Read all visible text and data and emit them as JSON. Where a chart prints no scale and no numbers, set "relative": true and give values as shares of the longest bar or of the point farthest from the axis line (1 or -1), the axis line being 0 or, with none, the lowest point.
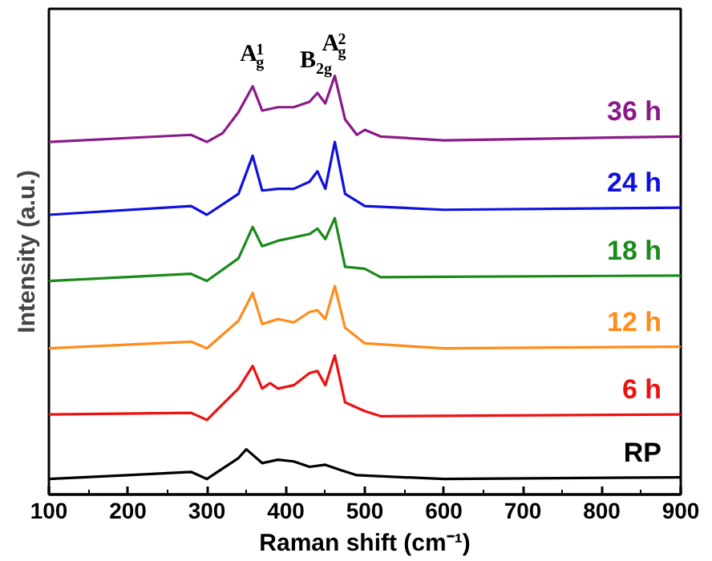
{
  "chart_data": {
    "type": "line",
    "relative": true,
    "xlabel": "Raman shift (cm⁻¹)",
    "ylabel": "Intensity (a.u.)",
    "xlim": [
      100,
      900
    ],
    "xticks": [
      100,
      200,
      300,
      400,
      500,
      600,
      700,
      800,
      900
    ],
    "grid": false,
    "tick_labels": "x",
    "annotations": [
      {
        "text": "A$_{g}$$^{1}$",
        "x": 358,
        "y": 0.975
      },
      {
        "text": "B$_{2g}$",
        "x": 440,
        "y": 0.959
      },
      {
        "text": "A$_{g}$$^{2}$",
        "x": 462,
        "y": 1.0
      }
    ],
    "series": [
      {
        "name": "RP",
        "color": "#000000",
        "x": [
          100,
          200,
          280,
          300,
          340,
          350,
          370,
          390,
          410,
          430,
          450,
          470,
          490,
          600,
          900
        ],
        "values": [
          0.037,
          0.046,
          0.054,
          0.037,
          0.087,
          0.108,
          0.075,
          0.083,
          0.079,
          0.066,
          0.071,
          0.058,
          0.046,
          0.037,
          0.041
        ]
      },
      {
        "name": "6 h",
        "color": "#ee1111",
        "x": [
          100,
          280,
          300,
          340,
          358,
          370,
          380,
          390,
          410,
          430,
          440,
          450,
          462,
          475,
          500,
          520,
          900
        ],
        "values": [
          0.191,
          0.195,
          0.178,
          0.253,
          0.307,
          0.253,
          0.266,
          0.253,
          0.261,
          0.29,
          0.295,
          0.261,
          0.332,
          0.22,
          0.199,
          0.187,
          0.191
        ]
      },
      {
        "name": "12 h",
        "color": "#ff8c1a",
        "x": [
          100,
          280,
          300,
          340,
          358,
          370,
          390,
          410,
          430,
          440,
          450,
          462,
          475,
          500,
          600,
          900
        ],
        "values": [
          0.349,
          0.365,
          0.349,
          0.415,
          0.481,
          0.407,
          0.419,
          0.411,
          0.436,
          0.44,
          0.419,
          0.498,
          0.398,
          0.361,
          0.349,
          0.353
        ]
      },
      {
        "name": "18 h",
        "color": "#1a8a1a",
        "x": [
          100,
          280,
          300,
          340,
          358,
          370,
          390,
          430,
          440,
          450,
          462,
          475,
          500,
          520,
          900
        ],
        "values": [
          0.51,
          0.527,
          0.51,
          0.564,
          0.639,
          0.593,
          0.606,
          0.622,
          0.635,
          0.61,
          0.66,
          0.544,
          0.539,
          0.519,
          0.523
        ]
      },
      {
        "name": "24 h",
        "color": "#1010e0",
        "x": [
          100,
          280,
          300,
          340,
          358,
          370,
          390,
          410,
          430,
          440,
          450,
          462,
          475,
          500,
          600,
          900
        ],
        "values": [
          0.668,
          0.689,
          0.668,
          0.718,
          0.809,
          0.726,
          0.73,
          0.73,
          0.747,
          0.772,
          0.73,
          0.842,
          0.718,
          0.689,
          0.68,
          0.685
        ]
      },
      {
        "name": "36 h",
        "color": "#8b1a89",
        "x": [
          100,
          280,
          300,
          320,
          340,
          358,
          370,
          390,
          410,
          430,
          440,
          450,
          462,
          475,
          490,
          500,
          520,
          600,
          900
        ],
        "values": [
          0.842,
          0.859,
          0.842,
          0.863,
          0.913,
          0.975,
          0.917,
          0.925,
          0.925,
          0.938,
          0.959,
          0.934,
          1.0,
          0.896,
          0.859,
          0.871,
          0.855,
          0.846,
          0.855
        ]
      }
    ]
  }
}
